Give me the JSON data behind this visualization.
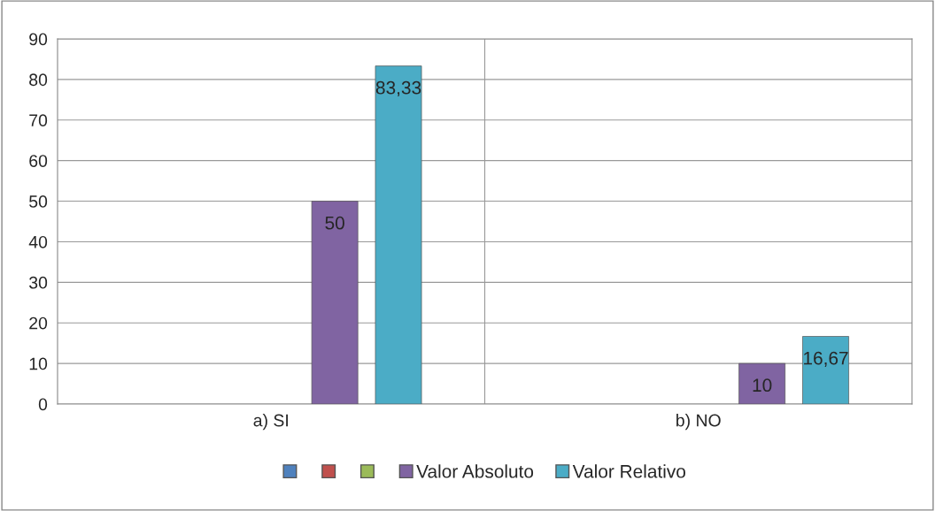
{
  "chart_data": {
    "type": "bar",
    "categories": [
      "a) SI",
      "b) NO"
    ],
    "series": [
      {
        "color": "#4f81bd",
        "values": [
          null,
          null
        ]
      },
      {
        "color": "#c0504d",
        "values": [
          null,
          null
        ]
      },
      {
        "color": "#9bbb59",
        "values": [
          null,
          null
        ]
      },
      {
        "name": "Valor Absoluto",
        "color": "#8064a2",
        "values": [
          50,
          10
        ],
        "value_labels": [
          "50",
          "10"
        ]
      },
      {
        "name": "Valor Relativo",
        "color": "#4bacc6",
        "values": [
          83.33,
          16.67
        ],
        "value_labels": [
          "83,33",
          "16,67"
        ]
      }
    ],
    "ylim": [
      0,
      90
    ],
    "yticks": [
      0,
      10,
      20,
      30,
      40,
      50,
      60,
      70,
      80,
      90
    ],
    "grid": true,
    "legend": "bottom"
  }
}
